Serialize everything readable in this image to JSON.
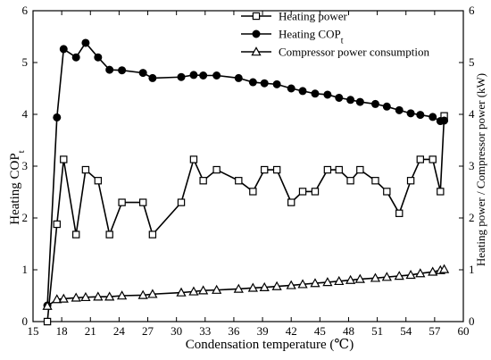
{
  "chart_data": {
    "type": "line",
    "x": [
      16.5,
      17.5,
      18.2,
      19.5,
      20.5,
      21.8,
      23.0,
      24.3,
      26.5,
      27.5,
      30.5,
      31.8,
      32.8,
      34.2,
      36.5,
      38.0,
      39.2,
      40.5,
      42.0,
      43.2,
      44.5,
      45.8,
      47.0,
      48.2,
      49.2,
      50.8,
      52.0,
      53.3,
      54.5,
      55.5,
      56.8,
      57.6,
      58.0
    ],
    "series": [
      {
        "name": "Heating power",
        "marker": "square-open",
        "values": [
          0.0,
          1.88,
          3.13,
          1.68,
          2.93,
          2.72,
          1.68,
          2.3,
          2.3,
          1.68,
          2.3,
          3.13,
          2.72,
          2.93,
          2.72,
          2.51,
          2.93,
          2.93,
          2.3,
          2.51,
          2.51,
          2.93,
          2.93,
          2.72,
          2.93,
          2.72,
          2.51,
          2.09,
          2.72,
          3.13,
          3.13,
          2.51,
          3.97
        ]
      },
      {
        "name": "Heating COP_t",
        "marker": "circle-filled",
        "values": [
          0.31,
          3.94,
          5.26,
          5.1,
          5.38,
          5.1,
          4.86,
          4.85,
          4.8,
          4.7,
          4.72,
          4.76,
          4.75,
          4.75,
          4.7,
          4.62,
          4.6,
          4.58,
          4.5,
          4.45,
          4.4,
          4.38,
          4.32,
          4.28,
          4.24,
          4.2,
          4.15,
          4.08,
          4.02,
          3.99,
          3.95,
          3.87,
          3.88
        ]
      },
      {
        "name": "Compressor power consumption",
        "marker": "triangle-open",
        "values": [
          0.3,
          0.43,
          0.44,
          0.46,
          0.47,
          0.48,
          0.48,
          0.5,
          0.51,
          0.53,
          0.56,
          0.58,
          0.6,
          0.61,
          0.63,
          0.65,
          0.66,
          0.68,
          0.7,
          0.72,
          0.74,
          0.76,
          0.78,
          0.8,
          0.82,
          0.84,
          0.86,
          0.88,
          0.9,
          0.93,
          0.96,
          0.99,
          1.01
        ]
      }
    ],
    "xlabel": "Condensation temperature (℃)",
    "ylabel_left": "Heating COP",
    "ylabel_left_sub": "t",
    "ylabel_right": "Heating power / Compressor power (kW)",
    "xlim": [
      15,
      60
    ],
    "ylim": [
      0,
      6
    ],
    "xticks": [
      "15",
      "18",
      "21",
      "24",
      "27",
      "30",
      "33",
      "36",
      "39",
      "42",
      "45",
      "48",
      "51",
      "54",
      "57",
      "60"
    ],
    "yticks": [
      "0",
      "1",
      "2",
      "3",
      "4",
      "5",
      "6"
    ],
    "grid": false,
    "legend": {
      "placement": "top-right",
      "entries": [
        {
          "label": "Heating power",
          "marker": "square-open"
        },
        {
          "label": "Heating COP",
          "sub": "t",
          "marker": "circle-filled"
        },
        {
          "label": "Compressor power consumption",
          "marker": "triangle-open"
        }
      ]
    },
    "colors": {
      "line": "#000000",
      "marker_fill": "#ffffff",
      "background": "#ffffff"
    }
  }
}
